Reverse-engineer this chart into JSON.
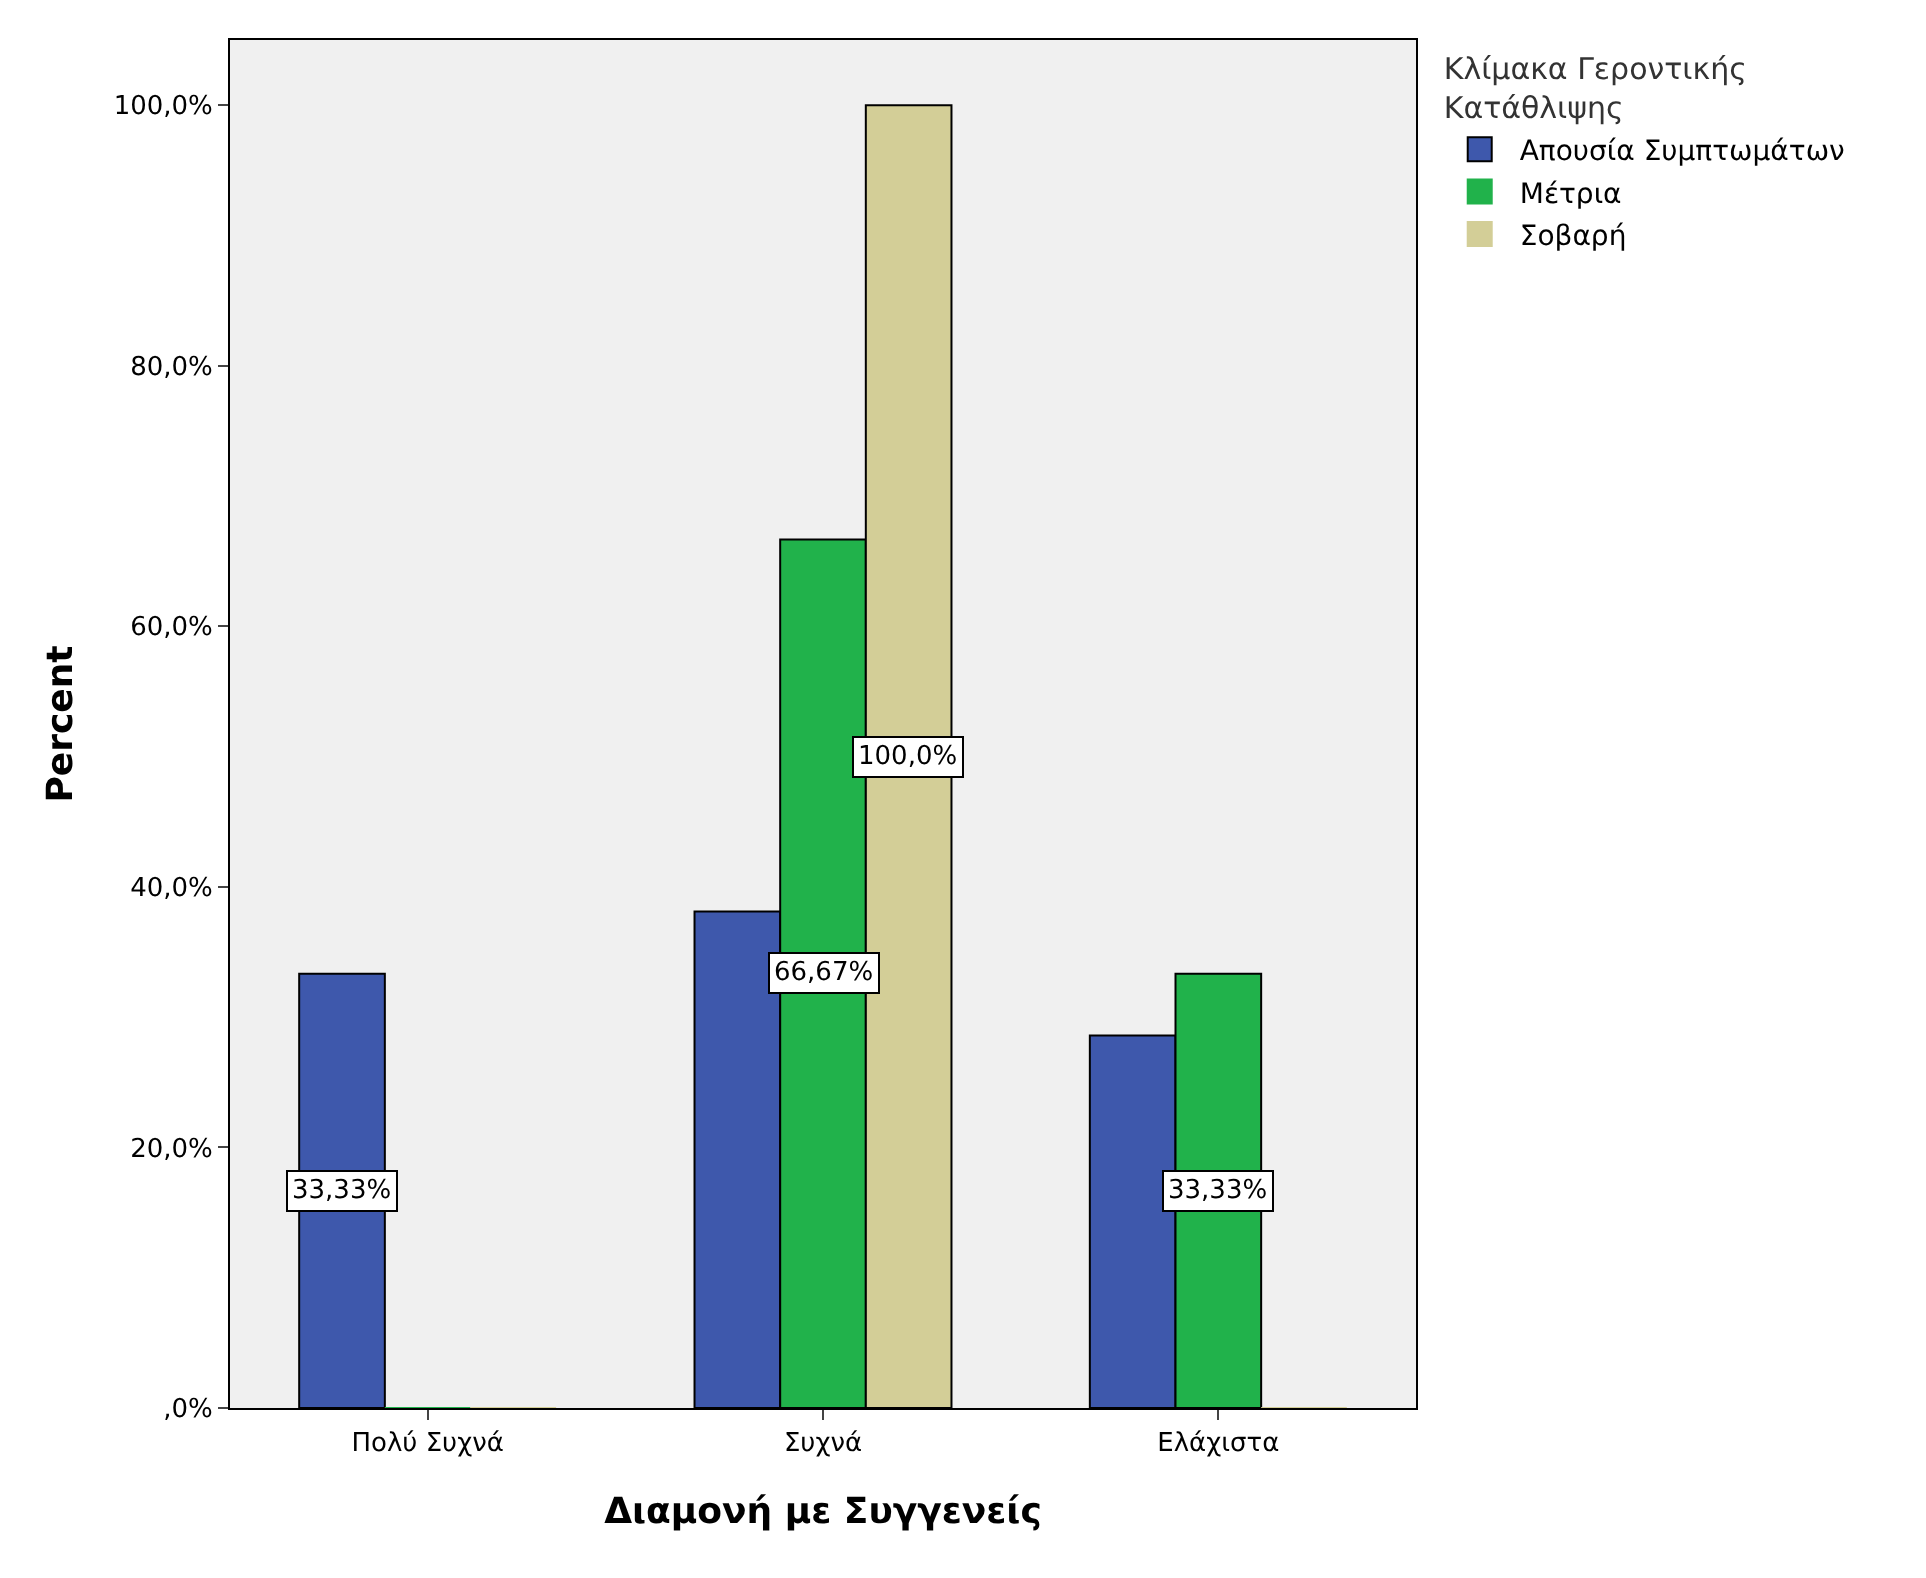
{
  "chart_data": {
    "type": "bar",
    "xlabel": "Διαμονή με Συγγενείς",
    "ylabel": "Percent",
    "legend_title": "Κλίμακα Γεροντικής\nΚατάθλιψης",
    "categories": [
      "Πολύ Συχνά",
      "Συχνά",
      "Ελάχιστα"
    ],
    "series": [
      {
        "name": "Απουσία Συμπτωμάτων",
        "color": "#3e58ac",
        "values": [
          33.33,
          38.1,
          28.6
        ],
        "value_labels": [
          "33,33%",
          null,
          null
        ]
      },
      {
        "name": "Μέτρια",
        "color": "#21b24b",
        "values": [
          0,
          66.67,
          33.33
        ],
        "value_labels": [
          null,
          "66,67%",
          "33,33%"
        ]
      },
      {
        "name": "Σοβαρή",
        "color": "#d3ce97",
        "values": [
          0,
          100,
          0
        ],
        "value_labels": [
          null,
          "100,0%",
          null
        ]
      }
    ],
    "ylim": [
      0,
      105
    ],
    "yticks": [
      {
        "value": 0,
        "label": ",0%"
      },
      {
        "value": 20,
        "label": "20,0%"
      },
      {
        "value": 40,
        "label": "40,0%"
      },
      {
        "value": 60,
        "label": "60,0%"
      },
      {
        "value": 80,
        "label": "80,0%"
      },
      {
        "value": 100,
        "label": "100,0%"
      }
    ],
    "grid": false,
    "legend": "top right"
  }
}
